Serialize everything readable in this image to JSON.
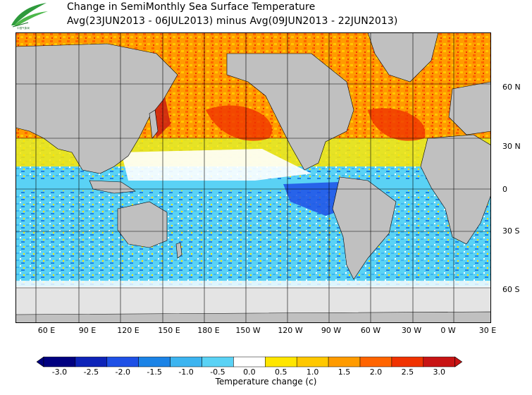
{
  "header": {
    "title_line1": "Change in SemiMonthly Sea Surface Temperature",
    "title_line2": "Avg(23JUN2013 - 06JUL2013) minus Avg(09JUN2013 - 22JUN2013)"
  },
  "logo": {
    "icon": "leaf-logo-icon",
    "text": "中国气象局"
  },
  "map": {
    "latitude_labels": [
      "60 N",
      "30 N",
      "0",
      "30 S",
      "60 S"
    ],
    "longitude_labels": [
      "60 E",
      "90 E",
      "120 E",
      "150 E",
      "180 E",
      "150 W",
      "120 W",
      "90 W",
      "60 W",
      "30 W",
      "0 W",
      "30 E"
    ],
    "land_color": "#c0c0c0",
    "ice_color": "#e4e4e4",
    "grid": true
  },
  "colorbar": {
    "labels": [
      "-3.0",
      "-2.5",
      "-2.0",
      "-1.5",
      "-1.0",
      "-0.5",
      "0.0",
      "0.5",
      "1.0",
      "1.5",
      "2.0",
      "2.5",
      "3.0"
    ],
    "colors": [
      "#000080",
      "#0d23b8",
      "#1e50e6",
      "#1b83e6",
      "#3cb4f0",
      "#5ad2f5",
      "#ffffff",
      "#ffe600",
      "#ffc800",
      "#ff9b00",
      "#ff6400",
      "#f03200",
      "#c81414"
    ],
    "units_label": "Temperature change  (c)"
  }
}
